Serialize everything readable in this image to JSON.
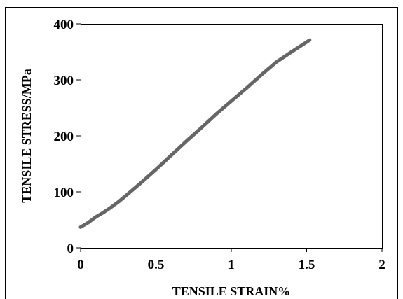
{
  "chart_data": {
    "type": "line",
    "xlabel": "TENSILE STRAIN%",
    "ylabel": "TENSILE STRESS/MPa",
    "xlim": [
      0,
      2
    ],
    "ylim": [
      0,
      400
    ],
    "x_ticks": [
      "0",
      "0.5",
      "1",
      "1.5",
      "2"
    ],
    "y_ticks": [
      "0",
      "100",
      "200",
      "300",
      "400"
    ],
    "grid": false,
    "legend": "none",
    "series": [
      {
        "line_color": "#666666",
        "points": [
          [
            0.0,
            37
          ],
          [
            0.05,
            45
          ],
          [
            0.1,
            55
          ],
          [
            0.15,
            63
          ],
          [
            0.2,
            72
          ],
          [
            0.25,
            82
          ],
          [
            0.3,
            93
          ],
          [
            0.4,
            116
          ],
          [
            0.5,
            140
          ],
          [
            0.6,
            165
          ],
          [
            0.7,
            190
          ],
          [
            0.8,
            214
          ],
          [
            0.9,
            239
          ],
          [
            1.0,
            262
          ],
          [
            1.1,
            285
          ],
          [
            1.2,
            309
          ],
          [
            1.3,
            332
          ],
          [
            1.4,
            350
          ],
          [
            1.52,
            371
          ]
        ]
      }
    ]
  }
}
